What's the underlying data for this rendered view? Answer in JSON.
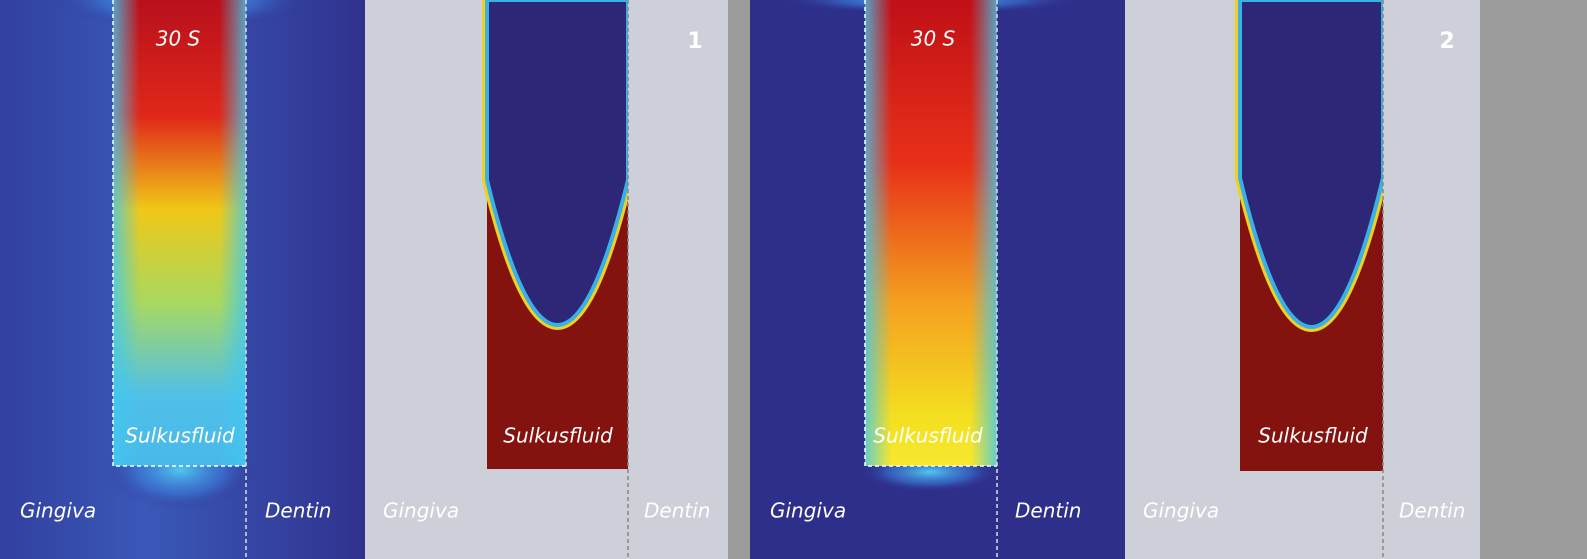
{
  "panels": [
    {
      "number": "1",
      "heatmap": {
        "time": "30 S",
        "fluid": "Sulkusfluid",
        "left": "Gingiva",
        "right": "Dentin"
      },
      "diagram": {
        "fluid": "Sulkusfluid",
        "left": "Gingiva",
        "right": "Dentin"
      }
    },
    {
      "number": "2",
      "heatmap": {
        "time": "30 S",
        "fluid": "Sulkusfluid",
        "left": "Gingiva",
        "right": "Dentin"
      },
      "diagram": {
        "fluid": "Sulkusfluid",
        "left": "Gingiva",
        "right": "Dentin"
      }
    }
  ]
}
